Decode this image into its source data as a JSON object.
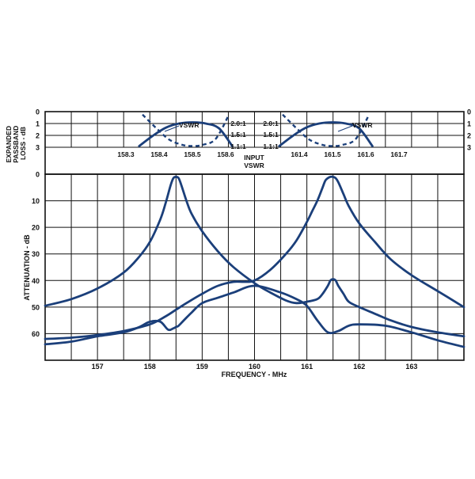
{
  "colors": {
    "curve": "#1b3f7a",
    "grid": "#111111",
    "background": "#ffffff"
  },
  "chart_data": [
    {
      "type": "line",
      "title": "",
      "xlabel": "FREQUENCY - MHz",
      "ylabel": "ATTENUATION - dB",
      "xlim": [
        156.0,
        164.0
      ],
      "ylim": [
        0,
        70
      ],
      "y_inverted": true,
      "x_ticks": [
        157,
        158,
        159,
        160,
        161,
        162,
        163
      ],
      "x_tick_labels": [
        "157",
        "158",
        "159",
        "160",
        "161",
        "162",
        "163"
      ],
      "y_ticks": [
        0,
        10,
        20,
        30,
        40,
        50,
        60
      ],
      "y_tick_labels": [
        "0",
        "10",
        "20",
        "30",
        "40",
        "50",
        "60"
      ],
      "grid": true,
      "series": [
        {
          "x": [
            156.0,
            156.5,
            157.0,
            157.5,
            157.8,
            158.0,
            158.2,
            158.35,
            158.45,
            158.5,
            158.55,
            158.65,
            158.8,
            159.0,
            159.3,
            159.6,
            160.0,
            160.5,
            160.8,
            161.0,
            161.2,
            161.4,
            161.6,
            161.8,
            162.0,
            162.5,
            163.0,
            163.5,
            164.0
          ],
          "values": [
            64,
            63,
            61,
            59.5,
            57.5,
            55.5,
            55.5,
            58.5,
            58,
            57.5,
            57,
            55,
            52,
            48.5,
            46.5,
            44.5,
            42,
            44.5,
            47,
            49.5,
            55,
            59.5,
            59,
            57,
            56.5,
            57,
            59.5,
            62.5,
            65
          ]
        },
        {
          "x": [
            156.0,
            156.5,
            157.0,
            157.5,
            157.8,
            158.0,
            158.2,
            158.3,
            158.4,
            158.45,
            158.5,
            158.55,
            158.6,
            158.7,
            158.8,
            159.0,
            159.3,
            159.6,
            160.0,
            160.3,
            160.6,
            160.8,
            161.0,
            161.2,
            161.3,
            161.4,
            161.45,
            161.5,
            161.55,
            161.6,
            161.7,
            161.8,
            162.0,
            162.3,
            162.6,
            163.0,
            163.5,
            164.0
          ],
          "values": [
            49.5,
            47,
            43,
            37,
            31,
            25.5,
            17,
            11,
            4,
            1.5,
            1,
            1.5,
            4,
            10,
            15,
            21.5,
            29,
            35,
            41,
            44.5,
            47.5,
            48.5,
            48,
            47,
            45,
            42,
            40,
            39.5,
            40,
            42,
            45,
            48,
            50,
            52.5,
            55,
            57.5,
            59.5,
            61
          ]
        },
        {
          "x": [
            156.0,
            156.5,
            157.0,
            157.5,
            158.0,
            158.3,
            158.5,
            158.7,
            159.0,
            159.3,
            159.6,
            159.8,
            160.0,
            160.3,
            160.6,
            160.8,
            161.0,
            161.1,
            161.2,
            161.3,
            161.35,
            161.4,
            161.45,
            161.5,
            161.55,
            161.6,
            161.7,
            161.8,
            162.0,
            162.3,
            162.6,
            163.0,
            163.5,
            164.0
          ],
          "values": [
            62,
            61.5,
            60.5,
            59,
            56.5,
            53.5,
            51,
            48.5,
            45,
            42,
            40.5,
            40.5,
            40,
            36,
            30,
            25,
            18,
            14,
            10,
            5,
            2.5,
            1.5,
            1,
            1,
            1.5,
            3,
            7.5,
            12,
            18.5,
            25.5,
            32,
            38,
            44,
            50
          ]
        }
      ]
    },
    {
      "type": "line",
      "title": "",
      "ylabel": "EXPANDED PASSBAND LOSS - dB",
      "ylim": [
        0,
        3
      ],
      "y_inverted": true,
      "y_ticks": [
        0,
        1,
        2,
        3
      ],
      "y_tick_labels": [
        "0",
        "1",
        "2",
        "3"
      ],
      "vswr_tick_labels": [
        "2.0:1",
        "1.5:1",
        "1.1:1"
      ],
      "center_label": "INPUT VSWR",
      "panels": [
        {
          "x_ticks": [
            158.3,
            158.4,
            158.5,
            158.6
          ],
          "x_tick_labels": [
            "158.3",
            "158.4",
            "158.5",
            "158.6"
          ],
          "annotation": "VSWR",
          "series": [
            {
              "style": "solid",
              "x": [
                158.34,
                158.38,
                158.42,
                158.46,
                158.5,
                158.54,
                158.58,
                158.62
              ],
              "values": [
                2.9,
                2.05,
                1.35,
                1.0,
                0.9,
                1.0,
                1.4,
                2.9
              ]
            },
            {
              "style": "dashed",
              "x": [
                158.35,
                158.39,
                158.43,
                158.47,
                158.5,
                158.53,
                158.57,
                158.61
              ],
              "values": [
                0.25,
                1.35,
                2.35,
                2.8,
                2.9,
                2.8,
                2.3,
                0.25
              ]
            }
          ]
        },
        {
          "x_ticks": [
            161.4,
            161.5,
            161.6,
            161.7
          ],
          "x_tick_labels": [
            "161.4",
            "161.5",
            "161.6",
            "161.7"
          ],
          "annotation": "VSWR",
          "series": [
            {
              "style": "solid",
              "x": [
                161.34,
                161.38,
                161.42,
                161.46,
                161.5,
                161.54,
                161.58,
                161.62
              ],
              "values": [
                2.9,
                2.05,
                1.35,
                1.0,
                0.9,
                1.0,
                1.4,
                2.9
              ]
            },
            {
              "style": "dashed",
              "x": [
                161.35,
                161.39,
                161.43,
                161.47,
                161.5,
                161.53,
                161.57,
                161.61
              ],
              "values": [
                0.25,
                1.35,
                2.35,
                2.8,
                2.9,
                2.8,
                2.3,
                0.25
              ]
            }
          ]
        }
      ]
    }
  ]
}
